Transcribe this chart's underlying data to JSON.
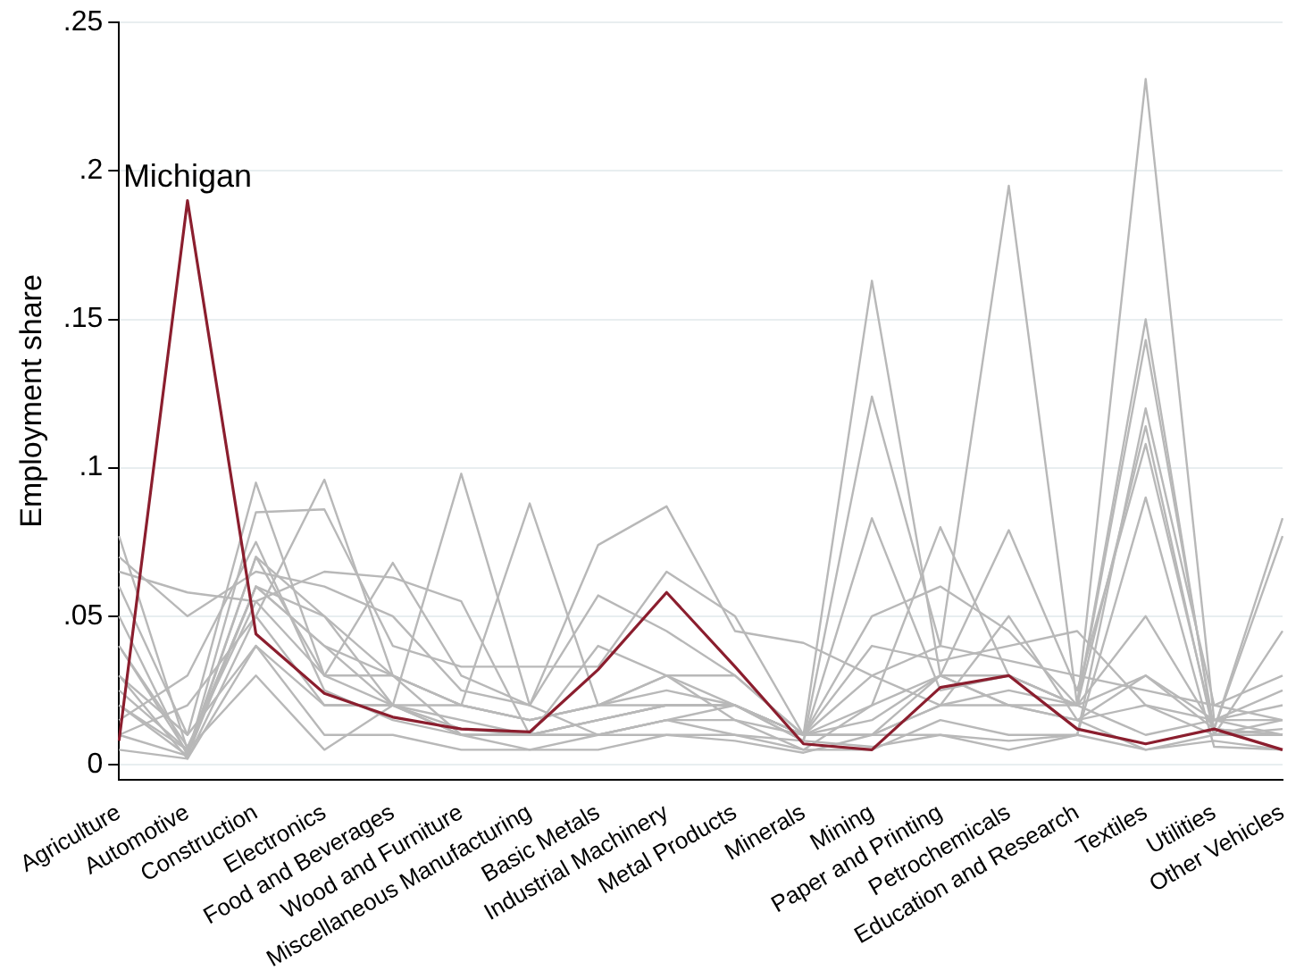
{
  "chart_data": {
    "type": "line",
    "ylabel": "Employment share",
    "categories": [
      "Agriculture",
      "Automotive",
      "Construction",
      "Electronics",
      "Food and Beverages",
      "Wood and Furniture",
      "Miscellaneous Manufacturing",
      "Basic Metals",
      "Industrial Machinery",
      "Metal Products",
      "Minerals",
      "Mining",
      "Paper and Printing",
      "Petrochemicals",
      "Education and Research",
      "Textiles",
      "Utilities",
      "Other Vehicles"
    ],
    "ylim": [
      -0.005,
      0.25
    ],
    "yticks": [
      0,
      {
        "value": 0.05,
        "label": ".05"
      },
      {
        "value": 0.1,
        "label": ".1"
      },
      {
        "value": 0.15,
        "label": ".15"
      },
      {
        "value": 0.2,
        "label": ".2"
      },
      {
        "value": 0.25,
        "label": ".25"
      }
    ],
    "grid": "y",
    "legend": false,
    "marker": "none",
    "line_style": "solid",
    "annotations": [
      {
        "text": "Michigan",
        "x": "Automotive",
        "y": 0.19
      }
    ],
    "series": [
      {
        "color": "#b8b8b8",
        "values": [
          0.077,
          0.005,
          0.06,
          0.05,
          0.03,
          0.02,
          0.015,
          0.02,
          0.03,
          0.02,
          0.01,
          0.163,
          0.03,
          0.02,
          0.015,
          0.005,
          0.01,
          0.01
        ]
      },
      {
        "color": "#b8b8b8",
        "values": [
          0.02,
          0.003,
          0.07,
          0.03,
          0.02,
          0.01,
          0.01,
          0.015,
          0.02,
          0.02,
          0.008,
          0.124,
          0.04,
          0.195,
          0.02,
          0.01,
          0.015,
          0.01
        ]
      },
      {
        "color": "#b8b8b8",
        "values": [
          0.03,
          0.002,
          0.05,
          0.02,
          0.02,
          0.012,
          0.01,
          0.01,
          0.015,
          0.015,
          0.01,
          0.01,
          0.03,
          0.03,
          0.02,
          0.231,
          0.015,
          0.015
        ]
      },
      {
        "color": "#b8b8b8",
        "values": [
          0.05,
          0.003,
          0.06,
          0.04,
          0.03,
          0.02,
          0.015,
          0.02,
          0.02,
          0.02,
          0.01,
          0.01,
          0.02,
          0.025,
          0.02,
          0.15,
          0.01,
          0.012
        ]
      },
      {
        "color": "#b8b8b8",
        "values": [
          0.04,
          0.004,
          0.07,
          0.05,
          0.02,
          0.015,
          0.01,
          0.015,
          0.02,
          0.02,
          0.008,
          0.083,
          0.025,
          0.03,
          0.02,
          0.143,
          0.012,
          0.01
        ]
      },
      {
        "color": "#b8b8b8",
        "values": [
          0.06,
          0.01,
          0.095,
          0.03,
          0.03,
          0.01,
          0.01,
          0.015,
          0.02,
          0.02,
          0.01,
          0.02,
          0.08,
          0.03,
          0.02,
          0.114,
          0.01,
          0.015
        ]
      },
      {
        "color": "#b8b8b8",
        "values": [
          0.01,
          0.02,
          0.05,
          0.096,
          0.03,
          0.02,
          0.015,
          0.02,
          0.025,
          0.02,
          0.01,
          0.015,
          0.03,
          0.079,
          0.025,
          0.108,
          0.012,
          0.083
        ]
      },
      {
        "color": "#b8b8b8",
        "values": [
          0.03,
          0.01,
          0.04,
          0.02,
          0.02,
          0.098,
          0.02,
          0.01,
          0.015,
          0.02,
          0.01,
          0.01,
          0.02,
          0.02,
          0.015,
          0.03,
          0.012,
          0.077
        ]
      },
      {
        "color": "#b8b8b8",
        "values": [
          0.02,
          0.005,
          0.06,
          0.04,
          0.02,
          0.02,
          0.088,
          0.02,
          0.03,
          0.015,
          0.005,
          0.02,
          0.03,
          0.02,
          0.02,
          0.05,
          0.012,
          0.01
        ]
      },
      {
        "color": "#b8b8b8",
        "values": [
          0.065,
          0.058,
          0.055,
          0.03,
          0.068,
          0.03,
          0.02,
          0.074,
          0.087,
          0.045,
          0.041,
          0.03,
          0.02,
          0.05,
          0.015,
          0.02,
          0.01,
          0.045
        ]
      },
      {
        "color": "#b8b8b8",
        "values": [
          0.01,
          0.003,
          0.085,
          0.086,
          0.04,
          0.033,
          0.033,
          0.033,
          0.065,
          0.05,
          0.01,
          0.05,
          0.06,
          0.045,
          0.02,
          0.03,
          0.015,
          0.025
        ]
      },
      {
        "color": "#b8b8b8",
        "values": [
          0.005,
          0.002,
          0.04,
          0.01,
          0.01,
          0.005,
          0.005,
          0.005,
          0.01,
          0.01,
          0.005,
          0.005,
          0.015,
          0.01,
          0.01,
          0.005,
          0.008,
          0.005
        ]
      },
      {
        "color": "#b8b8b8",
        "values": [
          0.07,
          0.05,
          0.065,
          0.06,
          0.05,
          0.025,
          0.02,
          0.057,
          0.045,
          0.03,
          0.01,
          0.04,
          0.035,
          0.04,
          0.045,
          0.02,
          0.015,
          0.02
        ]
      },
      {
        "color": "#b8b8b8",
        "values": [
          0.015,
          0.03,
          0.075,
          0.025,
          0.015,
          0.01,
          0.01,
          0.01,
          0.015,
          0.01,
          0.008,
          0.006,
          0.01,
          0.005,
          0.01,
          0.09,
          0.006,
          0.005
        ]
      },
      {
        "color": "#b8b8b8",
        "values": [
          0.04,
          0.006,
          0.055,
          0.065,
          0.063,
          0.055,
          0.01,
          0.04,
          0.03,
          0.03,
          0.01,
          0.03,
          0.04,
          0.035,
          0.03,
          0.025,
          0.02,
          0.03
        ]
      },
      {
        "color": "#b8b8b8",
        "values": [
          0.025,
          0.005,
          0.03,
          0.005,
          0.02,
          0.01,
          0.005,
          0.01,
          0.01,
          0.008,
          0.004,
          0.01,
          0.01,
          0.008,
          0.01,
          0.12,
          0.02,
          0.015
        ]
      },
      {
        "color": "#8b1e2e",
        "values": [
          0.008,
          0.19,
          0.044,
          0.024,
          0.016,
          0.012,
          0.011,
          0.032,
          0.058,
          0.033,
          0.007,
          0.005,
          0.026,
          0.03,
          0.012,
          0.007,
          0.012,
          0.005
        ]
      }
    ]
  }
}
